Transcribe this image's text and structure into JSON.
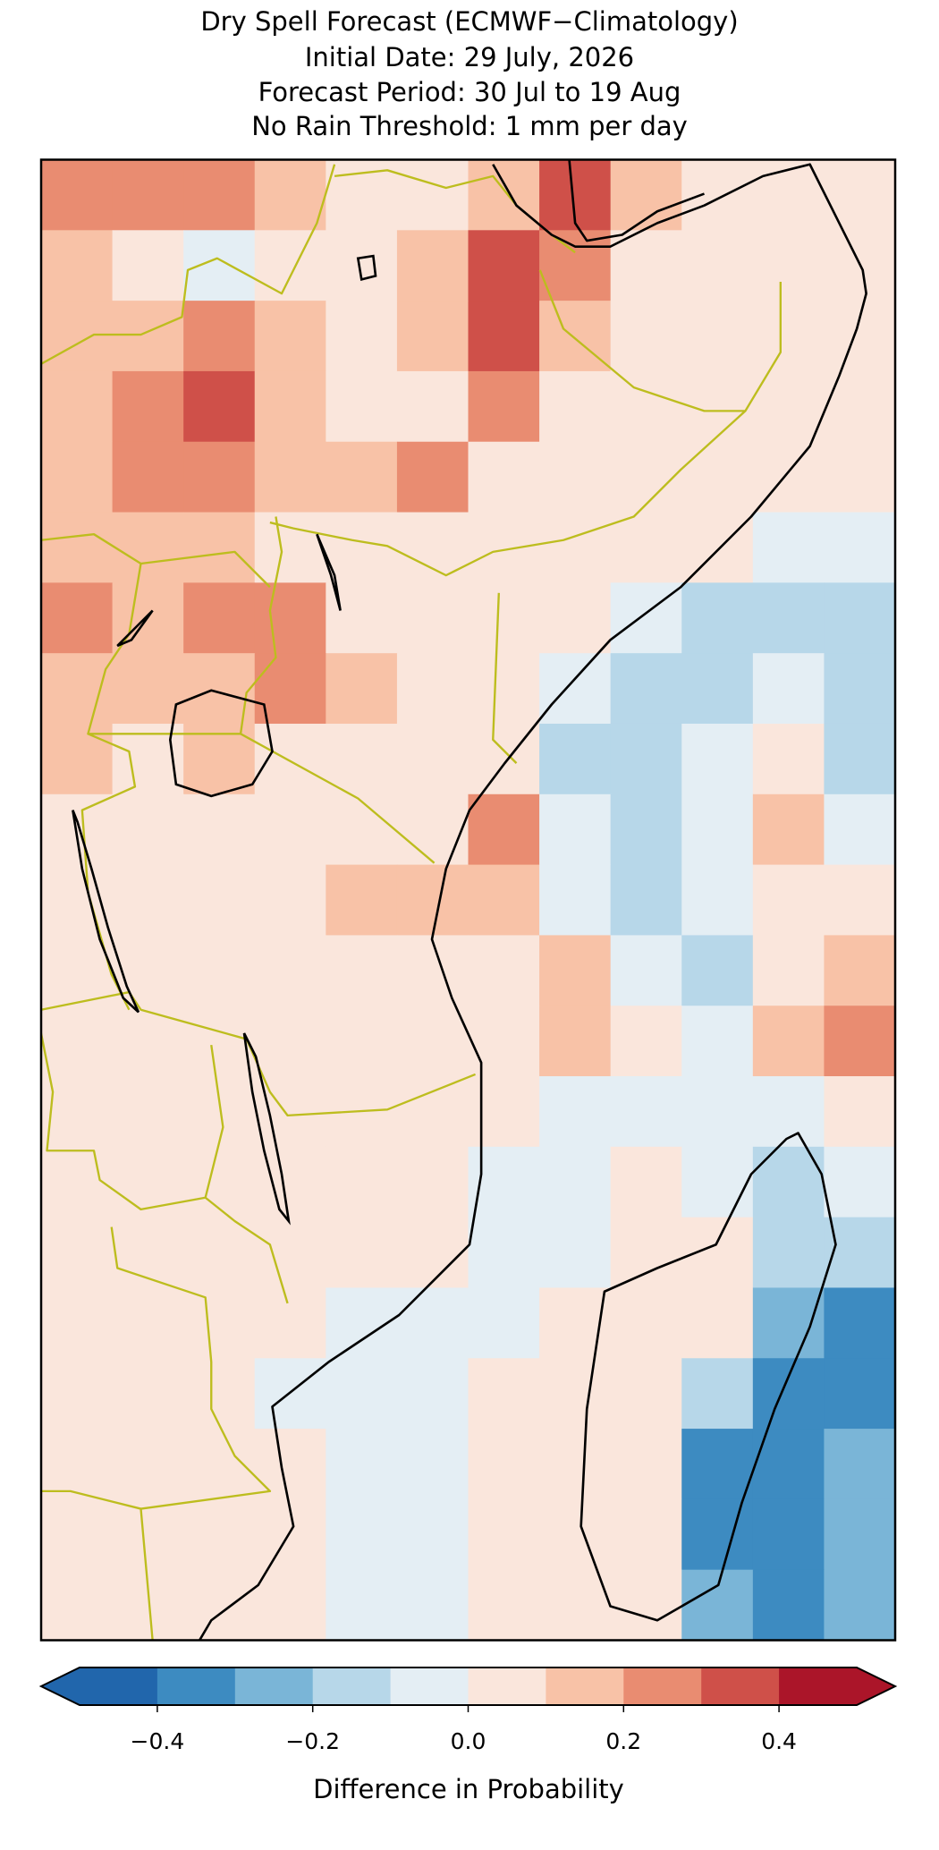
{
  "chart_data": {
    "type": "heatmap",
    "title": [
      "Dry Spell Forecast (ECMWF−Climatology)",
      "Initial Date: 29 July, 2026",
      "Forecast Period: 30 Jul to 19 Aug",
      "No Rain Threshold: 1 mm per day"
    ],
    "xlim": [
      28,
      52
    ],
    "ylim": [
      -27,
      15
    ],
    "values": [
      [
        0.25,
        0.25,
        0.25,
        0.15,
        0.05,
        0.05,
        0.15,
        0.35,
        0.15,
        0.05,
        0.05,
        0.05
      ],
      [
        0.15,
        0.05,
        -0.05,
        0.05,
        0.05,
        0.15,
        0.35,
        0.25,
        0.05,
        0.05,
        0.05,
        0.05
      ],
      [
        0.15,
        0.15,
        0.25,
        0.15,
        0.05,
        0.15,
        0.35,
        0.15,
        0.05,
        0.05,
        0.05,
        0.05
      ],
      [
        0.15,
        0.25,
        0.35,
        0.15,
        0.05,
        0.05,
        0.25,
        0.05,
        0.05,
        0.05,
        0.05,
        0.05
      ],
      [
        0.15,
        0.25,
        0.25,
        0.15,
        0.15,
        0.25,
        0.05,
        0.05,
        0.05,
        0.05,
        0.05,
        0.05
      ],
      [
        0.15,
        0.15,
        0.15,
        0.05,
        0.05,
        0.05,
        0.05,
        0.05,
        0.05,
        0.05,
        -0.05,
        -0.05
      ],
      [
        0.25,
        0.15,
        0.25,
        0.25,
        0.05,
        0.05,
        0.05,
        0.05,
        -0.05,
        -0.15,
        -0.15,
        -0.15
      ],
      [
        0.15,
        0.15,
        0.15,
        0.25,
        0.15,
        0.05,
        0.05,
        -0.05,
        -0.15,
        -0.15,
        -0.05,
        -0.15
      ],
      [
        0.15,
        0.05,
        0.15,
        0.05,
        0.05,
        0.05,
        0.05,
        -0.15,
        -0.15,
        -0.05,
        0.05,
        -0.15
      ],
      [
        0.05,
        0.05,
        0.05,
        0.05,
        0.05,
        0.05,
        0.25,
        -0.05,
        -0.15,
        -0.05,
        0.15,
        -0.05
      ],
      [
        0.05,
        0.05,
        0.05,
        0.05,
        0.15,
        0.15,
        0.15,
        -0.05,
        -0.15,
        -0.05,
        0.05,
        0.05
      ],
      [
        0.05,
        0.05,
        0.05,
        0.05,
        0.05,
        0.05,
        0.05,
        0.15,
        -0.05,
        -0.15,
        0.05,
        0.15
      ],
      [
        0.05,
        0.05,
        0.05,
        0.05,
        0.05,
        0.05,
        0.05,
        0.15,
        0.05,
        -0.05,
        0.15,
        0.25
      ],
      [
        0.05,
        0.05,
        0.05,
        0.05,
        0.05,
        0.05,
        0.05,
        -0.05,
        -0.05,
        -0.05,
        -0.05,
        0.05
      ],
      [
        0.05,
        0.05,
        0.05,
        0.05,
        0.05,
        0.05,
        -0.05,
        -0.05,
        0.05,
        -0.05,
        -0.15,
        -0.05
      ],
      [
        0.05,
        0.05,
        0.05,
        0.05,
        0.05,
        0.05,
        -0.05,
        -0.05,
        0.05,
        0.05,
        -0.15,
        -0.15
      ],
      [
        0.05,
        0.05,
        0.05,
        0.05,
        -0.05,
        -0.05,
        -0.05,
        0.05,
        0.05,
        0.05,
        -0.25,
        -0.35
      ],
      [
        0.05,
        0.05,
        0.05,
        -0.05,
        -0.05,
        -0.05,
        0.05,
        0.05,
        0.05,
        -0.15,
        -0.35,
        -0.35
      ],
      [
        0.05,
        0.05,
        0.05,
        0.05,
        -0.05,
        -0.05,
        0.05,
        0.05,
        0.05,
        -0.35,
        -0.35,
        -0.25
      ],
      [
        0.05,
        0.05,
        0.05,
        0.05,
        -0.05,
        -0.05,
        0.05,
        0.05,
        0.05,
        -0.35,
        -0.35,
        -0.25
      ],
      [
        0.05,
        0.05,
        0.05,
        0.05,
        -0.05,
        -0.05,
        0.05,
        0.05,
        0.05,
        -0.25,
        -0.35,
        -0.25
      ]
    ],
    "colorbar": {
      "label": "Difference in Probability",
      "levels": [
        -0.5,
        -0.4,
        -0.3,
        -0.2,
        -0.1,
        0,
        0.1,
        0.2,
        0.3,
        0.4,
        0.5
      ],
      "colors": [
        "#2166ac",
        "#3d8bc1",
        "#7ab5d7",
        "#b7d7e9",
        "#e4eef4",
        "#fae6dc",
        "#f8c2a7",
        "#e98c71",
        "#cf5049",
        "#ab1529"
      ],
      "extend": "both",
      "ticks": [
        {
          "value": -0.4,
          "label": "−0.4"
        },
        {
          "value": -0.2,
          "label": "−0.2"
        },
        {
          "value": 0,
          "label": "0.0"
        },
        0.2,
        0.4
      ]
    }
  }
}
